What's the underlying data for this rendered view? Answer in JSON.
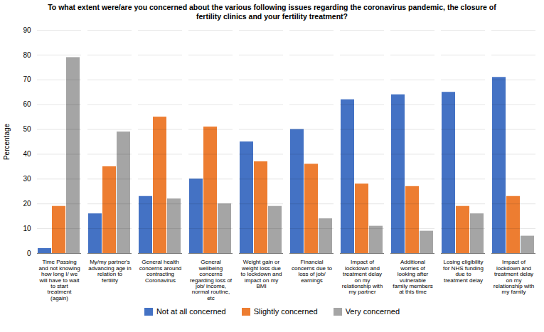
{
  "chart_data": {
    "type": "bar",
    "title": "To what extent were/are you concerned about the various following issues regarding the coronavirus pandemic, the closure of\nfertility clinics and your fertility treatment?",
    "ylabel": "Percentage",
    "categories": [
      "Time Passing\nand not knowing\nhow long I/ we\nwill have to wait\nto start\ntreatment\n(again)",
      "My/my partner's\nadvancing age in\nrelation to\nfertility",
      "General health\nconcerns around\ncontracting\nCoronavirus",
      "General\nwellbeing\nconcerns\nregarding loss of\njob/ income,\nnormal routine,\netc",
      "Weight gain or\nweight loss due\nto lockdown and\nimpact on my\nBMI",
      "Financial\nconcerns due to\nloss of job/\nearnings",
      "Impact of\nlockdown and\ntreatment delay\non my\nrelationship with\nmy partner",
      "Additional\nworries of\nlooking after\nvulnerable\nfamily members\nat this time",
      "Losing eligibility\nfor NHS funding\ndue to\ntreatment delay",
      "Impact of\nlockdown and\ntreatment delay\non my\nrelationship with\nmy family"
    ],
    "series": [
      {
        "name": "Not at all concerned",
        "color": "#4472C4",
        "values": [
          2,
          16,
          23,
          30,
          45,
          50,
          62,
          64,
          65,
          71
        ]
      },
      {
        "name": "Slightly concerned",
        "color": "#ED7D31",
        "values": [
          19,
          35,
          55,
          51,
          37,
          36,
          28,
          27,
          19,
          23
        ]
      },
      {
        "name": "Very concerned",
        "color": "#A5A5A5",
        "values": [
          79,
          49,
          22,
          20,
          19,
          14,
          11,
          9,
          16,
          7
        ]
      }
    ],
    "ylim": [
      0,
      90
    ],
    "yticks": [
      0,
      10,
      20,
      30,
      40,
      50,
      60,
      70,
      80,
      90
    ],
    "grid": true,
    "legend": "bottom"
  }
}
